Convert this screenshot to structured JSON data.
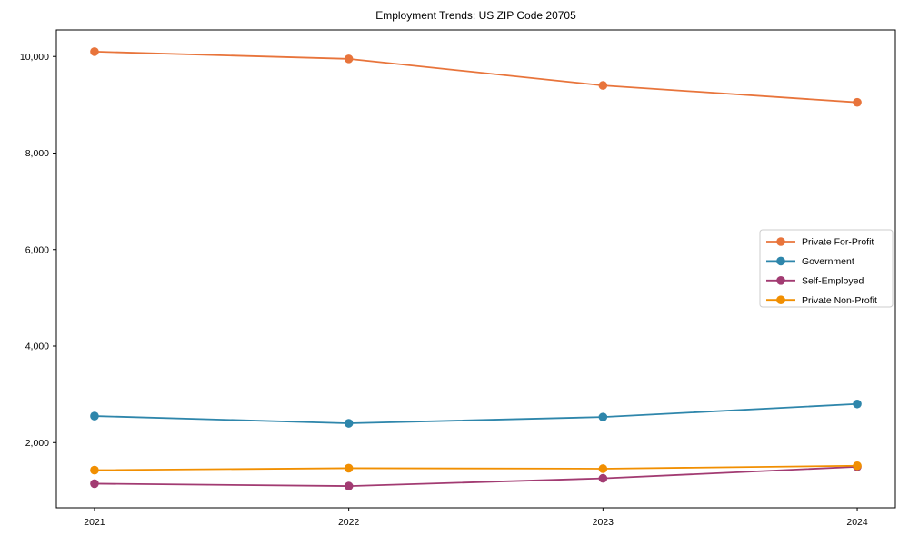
{
  "title": "Employment Trends: US ZIP Code 20705",
  "chart_data": {
    "type": "line",
    "title": "Employment Trends: US ZIP Code 20705",
    "xlabel": "",
    "ylabel": "",
    "x": [
      2021,
      2022,
      2023,
      2024
    ],
    "x_tick_labels": [
      "2021",
      "2022",
      "2023",
      "2024"
    ],
    "y_tick_values": [
      2000,
      4000,
      6000,
      8000,
      10000
    ],
    "y_tick_labels": [
      "2,000",
      "4,000",
      "6,000",
      "8,000",
      "10,000"
    ],
    "xlim": [
      2020.85,
      2024.15
    ],
    "ylim": [
      650,
      10550
    ],
    "grid": false,
    "legend_position": "center right",
    "series": [
      {
        "name": "Private For-Profit",
        "color": "#E8743B",
        "values": [
          10100,
          9950,
          9400,
          9050
        ]
      },
      {
        "name": "Government",
        "color": "#2E86AB",
        "values": [
          2550,
          2400,
          2530,
          2800
        ]
      },
      {
        "name": "Self-Employed",
        "color": "#A23B72",
        "values": [
          1150,
          1100,
          1260,
          1500
        ]
      },
      {
        "name": "Private Non-Profit",
        "color": "#F18F01",
        "values": [
          1430,
          1470,
          1460,
          1520
        ]
      }
    ],
    "style": {
      "spine_color": "#000000",
      "background": "#ffffff",
      "legend_border": "#cccccc",
      "marker_radius": 4.8,
      "line_width": 1.8
    }
  }
}
